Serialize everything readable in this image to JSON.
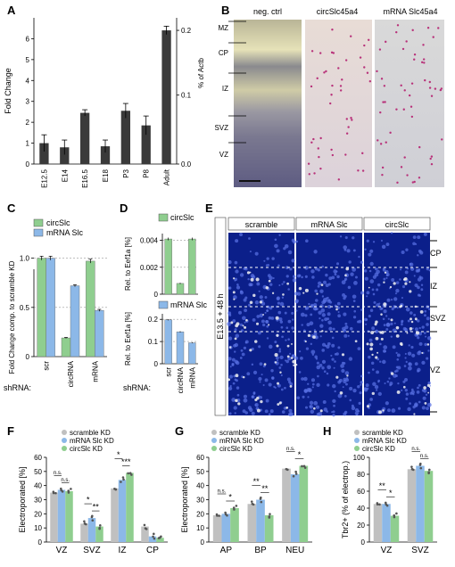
{
  "panels": {
    "A": {
      "letter": "A",
      "chart_data": {
        "type": "bar",
        "categories": [
          "E12.5",
          "E14",
          "E16.5",
          "E18",
          "P3",
          "P8",
          "Adult"
        ],
        "values": [
          1.0,
          0.8,
          2.45,
          0.85,
          2.55,
          1.85,
          6.4
        ],
        "errors": [
          0.4,
          0.35,
          0.15,
          0.3,
          0.35,
          0.45,
          0.2
        ],
        "ylabel": "Fold Change",
        "ylabel2": "% of Actb",
        "ylim": [
          0,
          7
        ],
        "yticks": [
          0,
          1,
          2,
          3,
          4,
          5,
          6
        ],
        "y2ticks": [
          "0.0",
          "0.1",
          "0.2"
        ],
        "color": "#3a3a3a"
      }
    },
    "B": {
      "letter": "B",
      "columns": [
        "neg. ctrl",
        "circSlc45a4",
        "mRNA Slc45a4"
      ],
      "layers": [
        "MZ",
        "CP",
        "IZ",
        "SVZ",
        "VZ"
      ]
    },
    "C": {
      "letter": "C",
      "chart_data": {
        "type": "bar",
        "categories": [
          "scr",
          "circRNA",
          "mRNA"
        ],
        "series": [
          {
            "name": "circSlc",
            "values": [
              1.0,
              0.19,
              0.97
            ],
            "errors": [
              0.02,
              0.005,
              0.02
            ],
            "color": "#8fce8f"
          },
          {
            "name": "mRNA Slc",
            "values": [
              1.0,
              0.72,
              0.47
            ],
            "errors": [
              0.02,
              0.01,
              0.01
            ],
            "color": "#8cb8e8"
          }
        ],
        "ylabel": "Fold Change comp. to scramble KD",
        "ylim": [
          0,
          1.25
        ],
        "yticks": [
          "0",
          "0.5",
          "1.0"
        ],
        "xprefix": "shRNA:"
      }
    },
    "D": {
      "letter": "D",
      "chart_data": [
        {
          "type": "bar",
          "legend": "circSlc",
          "ylabel": "Rel. to Eef1a [%]",
          "ylim": [
            0,
            0.0045
          ],
          "yticks": [
            "0",
            "0.002",
            "0.004"
          ],
          "values": [
            0.0041,
            0.0008,
            0.0041
          ],
          "errors": [
            0.0001,
            5e-05,
            0.0001
          ],
          "color": "#8fce8f"
        },
        {
          "type": "bar",
          "legend": "mRNA Slc",
          "ylabel": "Rel. to Eef1a [%]",
          "ylim": [
            0,
            0.25
          ],
          "yticks": [
            "0",
            "0.1",
            "0.2"
          ],
          "values": [
            0.22,
            0.16,
            0.105
          ],
          "errors": [
            0.003,
            0.003,
            0.002
          ],
          "color": "#8cb8e8"
        }
      ],
      "categories": [
        "scr",
        "circRNA",
        "mRNA"
      ],
      "xprefix": "shRNA:"
    },
    "E": {
      "letter": "E",
      "columns": [
        "scramble",
        "mRNA Slc",
        "circSlc"
      ],
      "side_label": "E13.5 + 48 h",
      "layers": [
        "CP",
        "IZ",
        "SVZ",
        "VZ"
      ]
    },
    "F": {
      "letter": "F",
      "chart_data": {
        "type": "bar",
        "categories": [
          "VZ",
          "SVZ",
          "IZ",
          "CP"
        ],
        "series": [
          {
            "name": "scramble KD",
            "values": [
              35,
              13,
              38,
              11
            ],
            "color": "#c0c0c0"
          },
          {
            "name": "mRNA Slc KD",
            "values": [
              37,
              17,
              44,
              4
            ],
            "color": "#8cb8e8"
          },
          {
            "name": "circSlc KD",
            "values": [
              36,
              11,
              49,
              3
            ],
            "color": "#8fce8f"
          }
        ],
        "ylabel": "Electroporated [%]",
        "ylim": [
          0,
          60
        ],
        "yticks": [
          0,
          10,
          20,
          30,
          40,
          50,
          60
        ],
        "significance": [
          "n.s.",
          "n.s.",
          "*",
          "**",
          "*",
          "***"
        ]
      }
    },
    "G": {
      "letter": "G",
      "chart_data": {
        "type": "bar",
        "categories": [
          "AP",
          "BP",
          "NEU"
        ],
        "series": [
          {
            "name": "scramble KD",
            "values": [
              19,
              27,
              52
            ],
            "color": "#c0c0c0"
          },
          {
            "name": "mRNA Slc KD",
            "values": [
              20,
              30,
              48
            ],
            "color": "#8cb8e8"
          },
          {
            "name": "circSlc KD",
            "values": [
              24,
              19,
              54
            ],
            "color": "#8fce8f"
          }
        ],
        "ylabel": "Electroporated [%]",
        "ylim": [
          0,
          60
        ],
        "yticks": [
          0,
          10,
          20,
          30,
          40,
          50,
          60
        ],
        "significance": [
          "n.s.",
          "*",
          "**",
          "**",
          "n.s.",
          "*"
        ]
      }
    },
    "H": {
      "letter": "H",
      "chart_data": {
        "type": "bar",
        "categories": [
          "VZ",
          "SVZ"
        ],
        "series": [
          {
            "name": "scramble KD",
            "values": [
              45,
              86
            ],
            "color": "#c0c0c0"
          },
          {
            "name": "mRNA Slc KD",
            "values": [
              45,
              90
            ],
            "color": "#8cb8e8"
          },
          {
            "name": "circSlc KD",
            "values": [
              31,
              84
            ],
            "color": "#8fce8f"
          }
        ],
        "ylabel": "Tbr2+ (% of electrop.)",
        "ylim": [
          0,
          100
        ],
        "yticks": [
          0,
          20,
          40,
          60,
          80,
          100
        ],
        "significance": [
          "**",
          "*",
          "n.s.",
          "n.s."
        ]
      }
    }
  }
}
